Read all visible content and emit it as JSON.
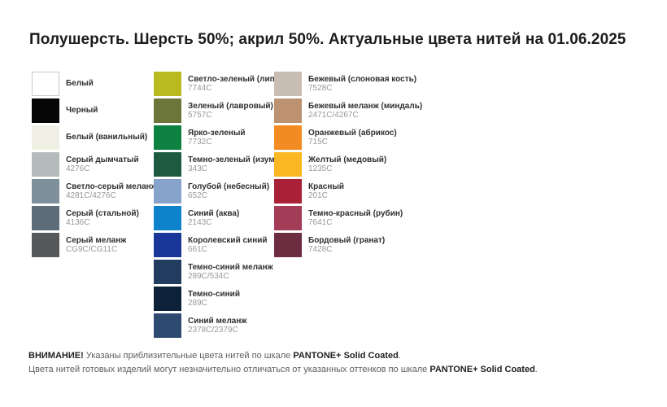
{
  "title": "Полушерсть. Шерсть 50%; акрил 50%. Актуальные цвета нитей на 01.06.2025",
  "palette": {
    "columns": [
      {
        "id": "whites-and-grays",
        "items": [
          {
            "name": "Белый",
            "code": "",
            "hex": "#ffffff",
            "bordered": true
          },
          {
            "name": "Черный",
            "code": "",
            "hex": "#060606"
          },
          {
            "name": "Белый (ванильный)",
            "code": "",
            "hex": "#f0efe4"
          },
          {
            "name": "Серый дымчатый",
            "code": "4276C",
            "hex": "#b5babc"
          },
          {
            "name": "Светло-серый меланж",
            "code": "4281C/4276C",
            "hex": "#7e909b"
          },
          {
            "name": "Серый (стальной)",
            "code": "4136C",
            "hex": "#5d6c78"
          },
          {
            "name": "Серый меланж",
            "code": "CG9C/CG11C",
            "hex": "#565859"
          }
        ]
      },
      {
        "id": "greens-and-blues",
        "items": [
          {
            "name": "Светло-зеленый (липа)",
            "code": "7744C",
            "hex": "#b9ba20"
          },
          {
            "name": "Зеленый (лавровый)",
            "code": "5757C",
            "hex": "#6c763a"
          },
          {
            "name": "Ярко-зеленый",
            "code": "7732C",
            "hex": "#0d8140"
          },
          {
            "name": "Темно-зеленый (изумруд)",
            "code": "343C",
            "hex": "#1d5a3f"
          },
          {
            "name": "Голубой (небесный)",
            "code": "652C",
            "hex": "#87a3cc"
          },
          {
            "name": "Синий (аква)",
            "code": "2143C",
            "hex": "#0e82ca"
          },
          {
            "name": "Королевский синий",
            "code": "661C",
            "hex": "#1a3699"
          },
          {
            "name": "Темно-синий меланж",
            "code": "289C/534C",
            "hex": "#223c60"
          },
          {
            "name": "Темно-синий",
            "code": "289C",
            "hex": "#0d2138"
          },
          {
            "name": "Синий меланж",
            "code": "2378C/2379C",
            "hex": "#2e4a70"
          }
        ]
      },
      {
        "id": "beiges-and-reds",
        "items": [
          {
            "name": "Бежевый (слоновая кость)",
            "code": "7528C",
            "hex": "#c8beb3"
          },
          {
            "name": "Бежевый меланж (миндаль)",
            "code": "2471C/4267C",
            "hex": "#bc9271"
          },
          {
            "name": "Оранжевый (абрикос)",
            "code": "715C",
            "hex": "#f28c22"
          },
          {
            "name": "Желтый (медовый)",
            "code": "1235C",
            "hex": "#fbb623"
          },
          {
            "name": "Красный",
            "code": "201C",
            "hex": "#a82136"
          },
          {
            "name": "Темно-красный (рубин)",
            "code": "7641C",
            "hex": "#a23c57"
          },
          {
            "name": "Бордовый (гранат)",
            "code": "7428C",
            "hex": "#6d2d40"
          }
        ]
      }
    ]
  },
  "footer": {
    "warning_bold": "ВНИМАНИЕ!",
    "line1_text": " Указаны приблизительные цвета нитей по шкале ",
    "line1_brand": "PANTONE+ Solid Coated",
    "line1_suffix": ".",
    "line2_text": "Цвета нитей готовых изделий могут незначительно отличаться от указанных оттенков по шкале ",
    "line2_brand": "PANTONE+ Solid Coated",
    "line2_suffix": "."
  }
}
